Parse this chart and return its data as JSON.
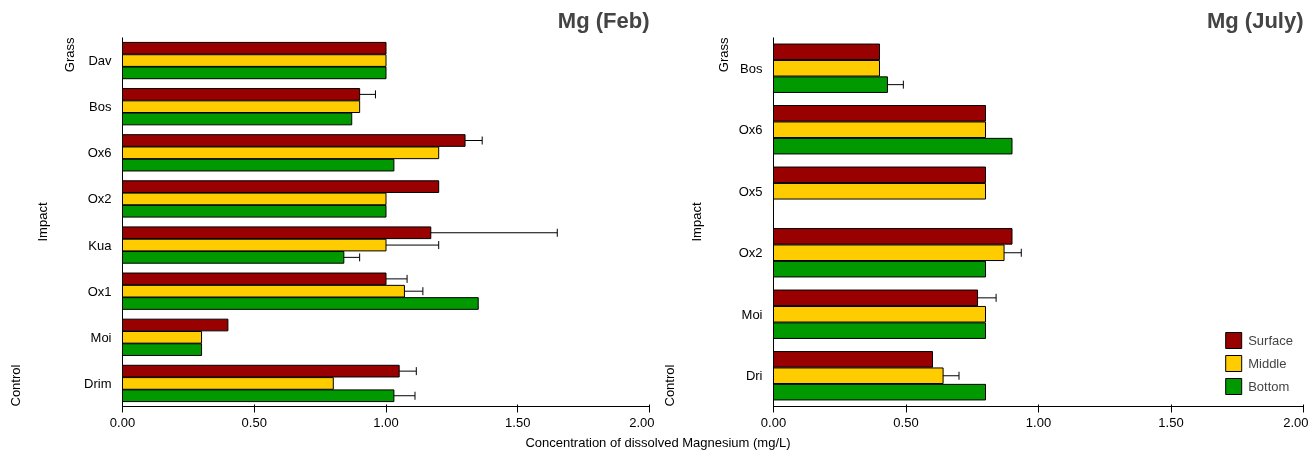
{
  "chart_data": [
    {
      "type": "bar",
      "orientation": "horizontal",
      "title": "Mg (Feb)",
      "xlabel": "Concentration of dissolved Magnesium (mg/L)",
      "categories": [
        "Dav",
        "Bos",
        "Ox6",
        "Ox2",
        "Kua",
        "Ox1",
        "Moi",
        "Drim"
      ],
      "annotations": [
        "Grass",
        "Impact",
        "Control"
      ],
      "series": [
        {
          "color": "#990000",
          "values": [
            1.0,
            0.9,
            1.3,
            1.2,
            1.17,
            1.0,
            0.4,
            1.05
          ],
          "errors": [
            null,
            0.06,
            0.065,
            null,
            0.48,
            0.08,
            null,
            0.065
          ]
        },
        {
          "color": "#ffcc00",
          "values": [
            1.0,
            0.9,
            1.2,
            1.0,
            1.0,
            1.07,
            0.3,
            0.8
          ],
          "errors": [
            null,
            null,
            null,
            null,
            0.2,
            0.07,
            null,
            null
          ]
        },
        {
          "color": "#009900",
          "values": [
            1.0,
            0.87,
            1.03,
            1.0,
            0.84,
            1.35,
            0.3,
            1.03
          ],
          "errors": [
            null,
            null,
            null,
            null,
            0.06,
            null,
            null,
            0.08
          ]
        }
      ],
      "xlim": [
        0,
        2
      ],
      "xticks": [
        {
          "value": 0,
          "label": "0.00"
        },
        {
          "value": 0.5,
          "label": "0.50"
        },
        {
          "value": 1,
          "label": "1.00"
        },
        {
          "value": 1.5,
          "label": "1.50"
        },
        {
          "value": 2,
          "label": "2.00"
        }
      ],
      "grid": false,
      "legend": false
    },
    {
      "type": "bar",
      "orientation": "horizontal",
      "title": "Mg (July)",
      "categories": [
        "Bos",
        "Ox6",
        "Ox5",
        "Ox2",
        "Moi",
        "Dri"
      ],
      "annotations": [
        "Grass",
        "Impact",
        "Control"
      ],
      "series": [
        {
          "name": "Surface",
          "color": "#990000",
          "values": [
            0.4,
            0.8,
            0.8,
            0.9,
            0.77,
            0.6
          ],
          "errors": [
            null,
            null,
            null,
            null,
            0.07,
            null
          ]
        },
        {
          "name": "Middle",
          "color": "#ffcc00",
          "values": [
            0.4,
            0.8,
            0.8,
            0.87,
            0.8,
            0.64
          ],
          "errors": [
            null,
            null,
            null,
            0.065,
            null,
            0.06
          ]
        },
        {
          "name": "Bottom",
          "color": "#009900",
          "values": [
            0.43,
            0.9,
            null,
            0.8,
            0.8,
            0.8
          ],
          "errors": [
            0.06,
            null,
            null,
            null,
            null,
            null
          ]
        }
      ],
      "xlim": [
        0,
        2
      ],
      "xticks": [
        {
          "value": 0,
          "label": "0.00"
        },
        {
          "value": 0.5,
          "label": "0.50"
        },
        {
          "value": 1,
          "label": "1.00"
        },
        {
          "value": 1.5,
          "label": "1.50"
        },
        {
          "value": 2,
          "label": "2.00"
        }
      ],
      "grid": false,
      "legend": "bottom right"
    }
  ]
}
